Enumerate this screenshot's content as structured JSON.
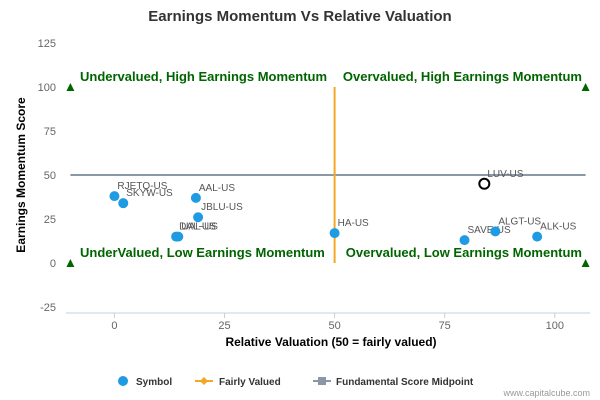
{
  "chart_data": {
    "type": "scatter",
    "title": "Earnings Momentum Vs Relative Valuation",
    "xlabel": "Relative Valuation (50 = fairly valued)",
    "ylabel": "Earnings Momentum Score",
    "xlim": [
      -11,
      108
    ],
    "ylim": [
      -25,
      125
    ],
    "x_ticks": [
      0,
      25,
      50,
      75,
      100
    ],
    "y_ticks": [
      -25,
      0,
      25,
      50,
      75,
      100,
      125
    ],
    "fairly_valued_x": 50,
    "midpoint_y": 50,
    "points": [
      {
        "label": "RJETQ-US",
        "x": 0,
        "y": 38
      },
      {
        "label": "SKYW-US",
        "x": 2,
        "y": 34
      },
      {
        "label": "AAL-US",
        "x": 18.5,
        "y": 37
      },
      {
        "label": "JBLU-US",
        "x": 19,
        "y": 26
      },
      {
        "label": "DAL-US",
        "x": 14,
        "y": 15
      },
      {
        "label": "UAL-US",
        "x": 14.5,
        "y": 15
      },
      {
        "label": "HA-US",
        "x": 50,
        "y": 17
      },
      {
        "label": "SAVE-US",
        "x": 79.5,
        "y": 13
      },
      {
        "label": "ALGT-US",
        "x": 86.5,
        "y": 18
      },
      {
        "label": "ALK-US",
        "x": 96,
        "y": 15
      },
      {
        "label": "LUV-US",
        "x": 84,
        "y": 45,
        "highlight": true
      }
    ],
    "quadrants": {
      "top_left": "Undervalued, High Earnings Momentum",
      "top_right": "Overvalued, High Earnings Momentum",
      "bottom_left": "UnderValued, Low Earnings Momentum",
      "bottom_right": "Overvalued, Low Earnings Momentum"
    },
    "legend": [
      {
        "name": "Symbol",
        "color": "#1f9be3",
        "marker": "circle"
      },
      {
        "name": "Fairly Valued",
        "color": "#f5a623",
        "marker": "diamond-line"
      },
      {
        "name": "Fundamental Score Midpoint",
        "color": "#8a97a6",
        "marker": "square-line"
      }
    ],
    "legend_position": "bottom",
    "colors": {
      "point": "#1f9be3",
      "highlight_stroke": "#000000",
      "fair_line": "#f5a623",
      "midpoint_line": "#8a97a6",
      "triangle": "#006400",
      "quadrant_text": "#006400"
    }
  },
  "credit": "www.capitalcube.com"
}
